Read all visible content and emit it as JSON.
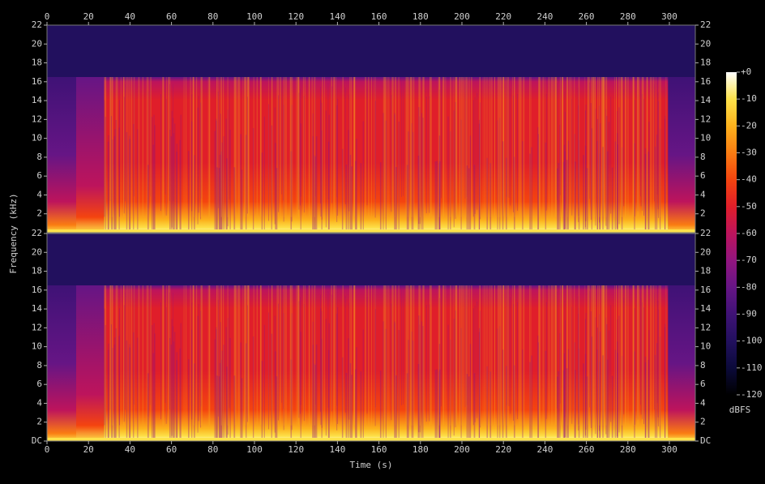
{
  "chart_data": {
    "type": "spectrogram",
    "x_label": "Time (s)",
    "y_label": "Frequency (kHz)",
    "xlim": [
      0,
      312.5
    ],
    "xticks": [
      0,
      20,
      40,
      60,
      80,
      100,
      120,
      140,
      160,
      180,
      200,
      220,
      240,
      260,
      280,
      300
    ],
    "panels": [
      {
        "ylim": [
          0,
          22
        ],
        "yticks": [
          2,
          4,
          6,
          8,
          10,
          12,
          14,
          16,
          18,
          20,
          22
        ]
      },
      {
        "ylim": [
          0,
          22
        ],
        "yticks": [
          {
            "value": 0,
            "label": "DC"
          },
          2,
          4,
          6,
          8,
          10,
          12,
          14,
          16,
          18,
          20,
          22
        ]
      }
    ],
    "colorbar": {
      "label": "dBFS",
      "lim": [
        -120,
        0
      ],
      "ticks": [
        {
          "value": 0,
          "label": "+0"
        },
        -10,
        -20,
        -30,
        -40,
        -50,
        -60,
        -70,
        -80,
        -90,
        -100,
        -110,
        -120
      ],
      "colormap": [
        "#000000",
        "#0b0a3a",
        "#22105e",
        "#3f1276",
        "#661585",
        "#92157f",
        "#bd145c",
        "#e01e2a",
        "#f4440f",
        "#fa7c12",
        "#fcb11c",
        "#fde24a",
        "#ffffff"
      ]
    }
  }
}
